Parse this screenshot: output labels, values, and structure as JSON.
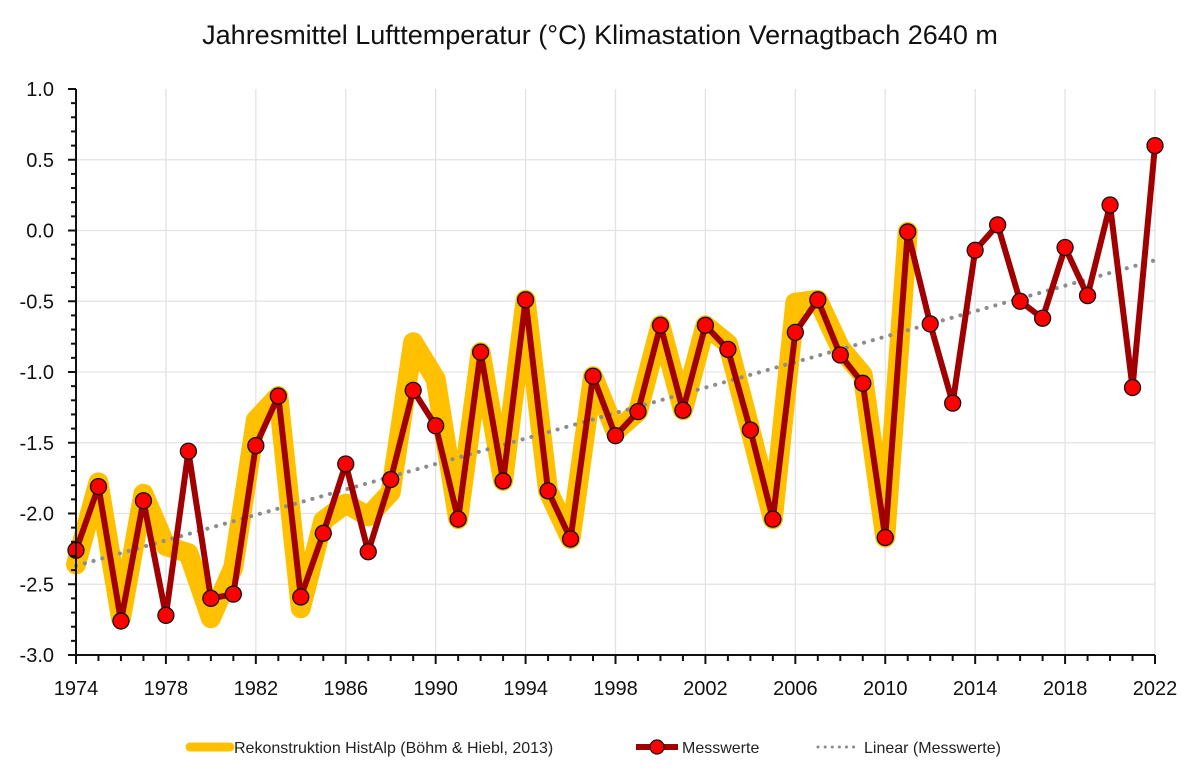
{
  "chart_data": {
    "type": "line",
    "title": "Jahresmittel Lufttemperatur (°C) Klimastation Vernagtbach 2640 m",
    "xlabel": "",
    "ylabel": "",
    "xlim": [
      1974,
      2022
    ],
    "ylim": [
      -3.0,
      1.0
    ],
    "x_ticks": [
      1974,
      1978,
      1982,
      1986,
      1990,
      1994,
      1998,
      2002,
      2006,
      2010,
      2014,
      2018,
      2022
    ],
    "x_tick_labels": [
      "1974",
      "1978",
      "1982",
      "1986",
      "1990",
      "1994",
      "1998",
      "2002",
      "2006",
      "2010",
      "2014",
      "2018",
      "2022"
    ],
    "y_ticks": [
      1.0,
      0.5,
      0.0,
      -0.5,
      -1.0,
      -1.5,
      -2.0,
      -2.5,
      -3.0
    ],
    "y_tick_labels": [
      "1.0",
      "0.5",
      "0.0",
      "-0.5",
      "-1.0",
      "-1.5",
      "-2.0",
      "-2.5",
      "-3.0"
    ],
    "grid": true,
    "legend_position": "bottom",
    "series": [
      {
        "name": "Rekonstruktion HistAlp (Böhm & Hiebl, 2013)",
        "color": "#FFC000",
        "style": "thick-line",
        "x": [
          1974,
          1975,
          1976,
          1977,
          1978,
          1979,
          1980,
          1981,
          1982,
          1983,
          1984,
          1985,
          1986,
          1987,
          1988,
          1989,
          1990,
          1991,
          1992,
          1993,
          1994,
          1995,
          1996,
          1997,
          1998,
          1999,
          2000,
          2001,
          2002,
          2003,
          2004,
          2005,
          2006,
          2007,
          2008,
          2009,
          2010,
          2011
        ],
        "values": [
          -2.36,
          -1.78,
          -2.74,
          -1.86,
          -2.23,
          -2.28,
          -2.74,
          -2.38,
          -1.34,
          -1.17,
          -2.67,
          -2.05,
          -1.93,
          -2.02,
          -1.85,
          -0.79,
          -1.05,
          -2.04,
          -0.86,
          -1.77,
          -0.49,
          -1.84,
          -2.18,
          -1.03,
          -1.42,
          -1.28,
          -0.67,
          -1.27,
          -0.67,
          -0.8,
          -1.41,
          -2.04,
          -0.51,
          -0.49,
          -0.83,
          -1.02,
          -2.17,
          -0.01
        ]
      },
      {
        "name": "Messwerte",
        "color": "#A00000",
        "marker_color": "#FF0000",
        "style": "line-markers",
        "x": [
          1974,
          1975,
          1976,
          1977,
          1978,
          1979,
          1980,
          1981,
          1982,
          1983,
          1984,
          1985,
          1986,
          1987,
          1988,
          1989,
          1990,
          1991,
          1992,
          1993,
          1994,
          1995,
          1996,
          1997,
          1998,
          1999,
          2000,
          2001,
          2002,
          2003,
          2004,
          2005,
          2006,
          2007,
          2008,
          2009,
          2010,
          2011,
          2012,
          2013,
          2014,
          2015,
          2016,
          2017,
          2018,
          2019,
          2020,
          2021,
          2022
        ],
        "values": [
          -2.26,
          -1.81,
          -2.76,
          -1.91,
          -2.72,
          -1.56,
          -2.6,
          -2.57,
          -1.52,
          -1.17,
          -2.59,
          -2.14,
          -1.65,
          -2.27,
          -1.76,
          -1.13,
          -1.38,
          -2.04,
          -0.86,
          -1.77,
          -0.49,
          -1.84,
          -2.18,
          -1.03,
          -1.45,
          -1.28,
          -0.67,
          -1.27,
          -0.67,
          -0.84,
          -1.41,
          -2.04,
          -0.72,
          -0.49,
          -0.88,
          -1.08,
          -2.17,
          -0.01,
          -0.66,
          -1.22,
          -0.14,
          0.04,
          -0.5,
          -0.62,
          -0.12,
          -0.46,
          0.18,
          -1.11,
          0.6
        ]
      },
      {
        "name": "Linear (Messwerte)",
        "color": "#8C8C8C",
        "style": "dotted",
        "x": [
          1974,
          2022
        ],
        "values": [
          -2.37,
          -0.21
        ]
      }
    ]
  }
}
